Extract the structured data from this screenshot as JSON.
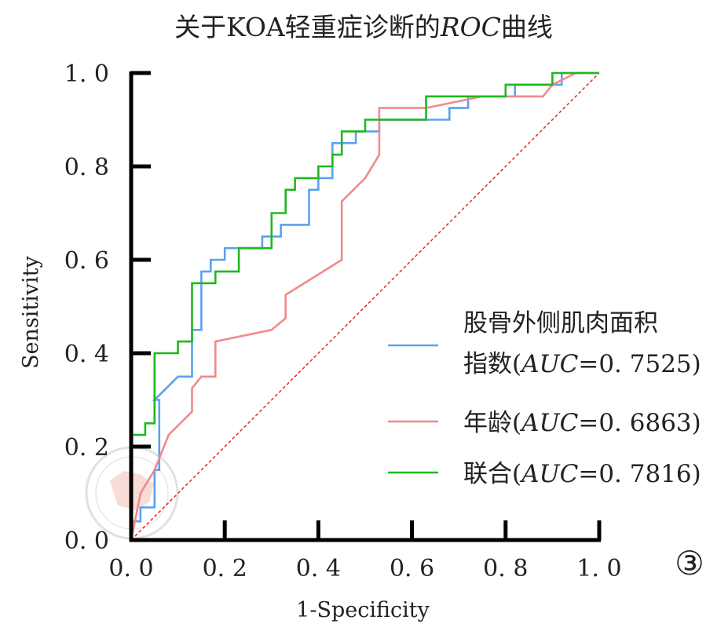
{
  "figure_label": "③",
  "chart_data": {
    "type": "line",
    "title_parts": [
      {
        "text": "关于KOA轻重症诊断的",
        "italic": false
      },
      {
        "text": "ROC",
        "italic": true
      },
      {
        "text": "曲线",
        "italic": false
      }
    ],
    "xlabel": "1-Specificity",
    "ylabel": "Sensitivity",
    "xlim": [
      0,
      1
    ],
    "ylim": [
      0,
      1
    ],
    "x_ticks": [
      0.0,
      0.2,
      0.4,
      0.6,
      0.8,
      1.0
    ],
    "y_ticks": [
      0.0,
      0.2,
      0.4,
      0.6,
      0.8,
      1.0
    ],
    "x_tick_labels": [
      "0. 0",
      "0. 2",
      "0. 4",
      "0. 6",
      "0. 8",
      "1. 0"
    ],
    "y_tick_labels": [
      "0. 0",
      "0. 2",
      "0. 4",
      "0. 6",
      "0. 8",
      "1. 0"
    ],
    "grid": false,
    "legend_position": "bottom-right",
    "reference_line": {
      "x": [
        0,
        1
      ],
      "y": [
        0,
        1
      ],
      "color": "#e8262a",
      "style": "dashed"
    },
    "series": [
      {
        "name": "股骨外侧肌肉面积指数",
        "legend_lines": [
          [
            {
              "text": "股骨外侧肌肉面积",
              "italic": false
            }
          ],
          [
            {
              "text": "指数(",
              "italic": false
            },
            {
              "text": "AUC",
              "italic": true
            },
            {
              "text": "=0. 7525)",
              "italic": false
            }
          ]
        ],
        "auc": 0.7525,
        "color": "#5aa2ee",
        "x": [
          0,
          0,
          0.02,
          0.02,
          0.05,
          0.05,
          0.06,
          0.06,
          0.05,
          0.05,
          0.1,
          0.1,
          0.13,
          0.13,
          0.15,
          0.15,
          0.17,
          0.17,
          0.2,
          0.2,
          0.25,
          0.25,
          0.28,
          0.28,
          0.32,
          0.32,
          0.38,
          0.38,
          0.4,
          0.4,
          0.43,
          0.43,
          0.48,
          0.48,
          0.53,
          0.53,
          0.68,
          0.68,
          0.72,
          0.72,
          0.78,
          0.78,
          0.82,
          0.82,
          0.92,
          0.92,
          0.96,
          0.96,
          1.0
        ],
        "y": [
          0,
          0.04,
          0.04,
          0.07,
          0.07,
          0.15,
          0.15,
          0.3,
          0.3,
          0.3,
          0.35,
          0.35,
          0.35,
          0.45,
          0.45,
          0.575,
          0.575,
          0.6,
          0.6,
          0.625,
          0.625,
          0.625,
          0.625,
          0.65,
          0.65,
          0.675,
          0.675,
          0.75,
          0.75,
          0.775,
          0.775,
          0.85,
          0.85,
          0.875,
          0.875,
          0.9,
          0.9,
          0.925,
          0.925,
          0.95,
          0.95,
          0.95,
          0.95,
          0.975,
          0.975,
          1.0,
          1.0,
          1.0,
          1.0
        ]
      },
      {
        "name": "年龄",
        "legend_lines": [
          [
            {
              "text": "年龄(",
              "italic": false
            },
            {
              "text": "AUC",
              "italic": true
            },
            {
              "text": "=0. 6863)",
              "italic": false
            }
          ]
        ],
        "auc": 0.6863,
        "color": "#f08a8a",
        "x": [
          0,
          0.01,
          0.02,
          0.05,
          0.08,
          0.13,
          0.13,
          0.15,
          0.15,
          0.18,
          0.18,
          0.3,
          0.33,
          0.33,
          0.45,
          0.45,
          0.5,
          0.53,
          0.53,
          0.55,
          0.63,
          0.75,
          0.8,
          0.88,
          0.9,
          0.95,
          1.0
        ],
        "y": [
          0,
          0.05,
          0.1,
          0.15,
          0.225,
          0.275,
          0.325,
          0.35,
          0.35,
          0.35,
          0.425,
          0.45,
          0.475,
          0.525,
          0.6,
          0.725,
          0.775,
          0.825,
          0.925,
          0.925,
          0.925,
          0.95,
          0.95,
          0.95,
          0.975,
          1.0,
          1.0
        ]
      },
      {
        "name": "联合",
        "legend_lines": [
          [
            {
              "text": "联合(",
              "italic": false
            },
            {
              "text": "AUC",
              "italic": true
            },
            {
              "text": "=0. 7816)",
              "italic": false
            }
          ]
        ],
        "auc": 0.7816,
        "color": "#1fb81f",
        "x": [
          0,
          0,
          0.03,
          0.03,
          0.05,
          0.05,
          0.1,
          0.1,
          0.13,
          0.13,
          0.18,
          0.18,
          0.23,
          0.23,
          0.3,
          0.3,
          0.33,
          0.33,
          0.35,
          0.35,
          0.4,
          0.4,
          0.43,
          0.43,
          0.45,
          0.45,
          0.5,
          0.5,
          0.63,
          0.63,
          0.8,
          0.8,
          0.9,
          0.9,
          1.0
        ],
        "y": [
          0,
          0.225,
          0.225,
          0.25,
          0.25,
          0.4,
          0.4,
          0.425,
          0.425,
          0.55,
          0.55,
          0.575,
          0.575,
          0.625,
          0.625,
          0.7,
          0.7,
          0.75,
          0.75,
          0.775,
          0.775,
          0.8,
          0.8,
          0.825,
          0.825,
          0.875,
          0.875,
          0.9,
          0.9,
          0.95,
          0.95,
          0.975,
          0.975,
          1.0,
          1.0
        ]
      }
    ]
  }
}
